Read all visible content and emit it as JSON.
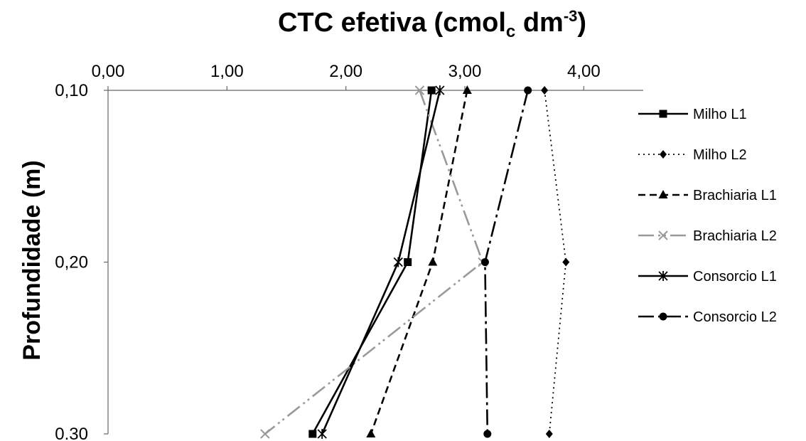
{
  "chart_data": {
    "type": "line",
    "title": {
      "main": "CTC efetiva (cmol",
      "sub": "c",
      "mid": " dm",
      "sup": "-3",
      "end": ")"
    },
    "ylabel": "Profundidade (m)",
    "xlim": [
      0,
      4.5
    ],
    "ylim": [
      0.1,
      0.3
    ],
    "x_axis_position": "top",
    "y_axis_inverted": true,
    "grid": false,
    "x_ticks": [
      {
        "value": 0,
        "label": "0,00"
      },
      {
        "value": 1,
        "label": "1,00"
      },
      {
        "value": 2,
        "label": "2,00"
      },
      {
        "value": 3,
        "label": "3,00"
      },
      {
        "value": 4,
        "label": "4,00"
      }
    ],
    "y_ticks": [
      {
        "value": 0.1,
        "label": "0,10"
      },
      {
        "value": 0.2,
        "label": "0,20"
      },
      {
        "value": 0.3,
        "label": "0.30"
      }
    ],
    "legend_position": "right",
    "series": [
      {
        "name": "Milho L1",
        "marker": "square",
        "dash": "solid",
        "x": [
          2.72,
          2.52,
          1.72
        ],
        "y": [
          0.1,
          0.2,
          0.3
        ]
      },
      {
        "name": "Milho L2",
        "marker": "diamond",
        "dash": "dotted",
        "x": [
          3.67,
          3.85,
          3.71
        ],
        "y": [
          0.1,
          0.2,
          0.3
        ]
      },
      {
        "name": "Brachiaria L1",
        "marker": "triangle",
        "dash": "dashed",
        "x": [
          3.02,
          2.73,
          2.21
        ],
        "y": [
          0.1,
          0.2,
          0.3
        ]
      },
      {
        "name": "Brachiaria L2",
        "marker": "x",
        "dash": "dashdotdot",
        "x": [
          2.62,
          3.15,
          1.32
        ],
        "y": [
          0.1,
          0.2,
          0.3
        ]
      },
      {
        "name": "Consorcio L1",
        "marker": "star",
        "dash": "solid",
        "x": [
          2.79,
          2.44,
          1.8
        ],
        "y": [
          0.1,
          0.2,
          0.3
        ]
      },
      {
        "name": "Consorcio L2",
        "marker": "circle",
        "dash": "dashdot",
        "x": [
          3.53,
          3.17,
          3.19
        ],
        "y": [
          0.1,
          0.2,
          0.3
        ]
      }
    ]
  }
}
